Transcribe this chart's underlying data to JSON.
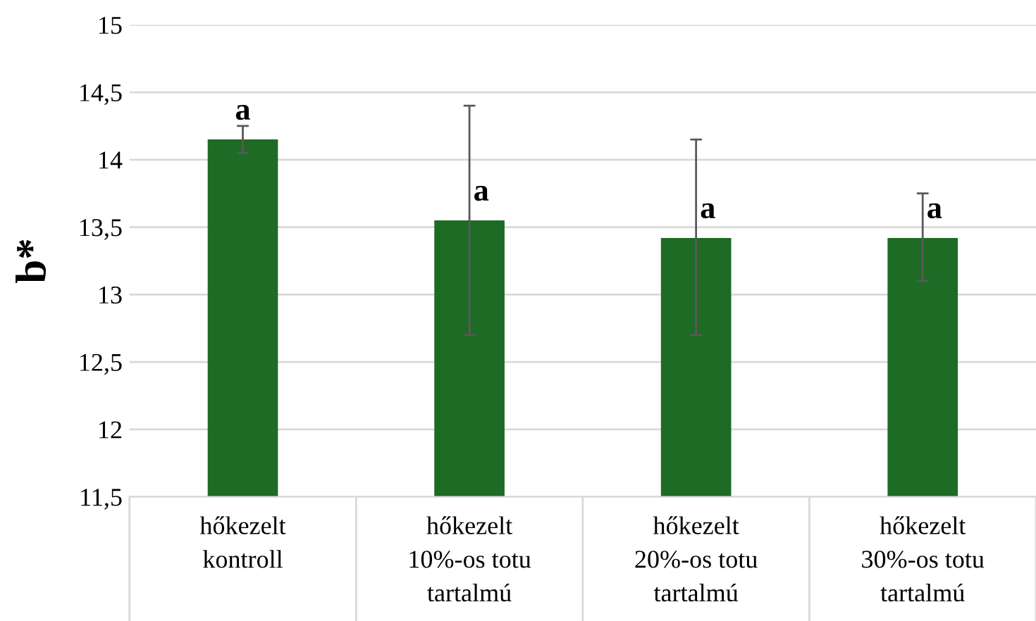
{
  "chart_data": {
    "type": "bar",
    "ylabel": "b*",
    "categories": [
      "hőkezelt\nkontroll",
      "hőkezelt\n10%-os totu\ntartalmú",
      "hőkezelt\n20%-os totu\ntartalmú",
      "hőkezelt\n30%-os totu\ntartalmú"
    ],
    "values": [
      14.15,
      13.55,
      13.42,
      13.42
    ],
    "color": "#1d6b24",
    "errors": [
      [
        14.05,
        14.25
      ],
      [
        12.7,
        14.4
      ],
      [
        12.7,
        14.15
      ],
      [
        13.1,
        13.75
      ]
    ],
    "ylim": [
      11.5,
      15
    ],
    "yticks": [
      {
        "value": 11.5,
        "label": "11,5"
      },
      12,
      {
        "value": 12.5,
        "label": "12,5"
      },
      13,
      {
        "value": 13.5,
        "label": "13,5"
      },
      14,
      {
        "value": 14.5,
        "label": "14,5"
      },
      15
    ],
    "grid": "y",
    "annotations": [
      {
        "text": "a",
        "x": "hőkezelt\nkontroll",
        "y": 14.15
      },
      {
        "text": "a",
        "x": "hőkezelt\n10%-os totu\ntartalmú",
        "y": 13.55
      },
      {
        "text": "a",
        "x": "hőkezelt\n20%-os totu\ntartalmú",
        "y": 13.42
      },
      {
        "text": "a",
        "x": "hőkezelt\n30%-os totu\ntartalmú",
        "y": 13.42
      }
    ]
  }
}
